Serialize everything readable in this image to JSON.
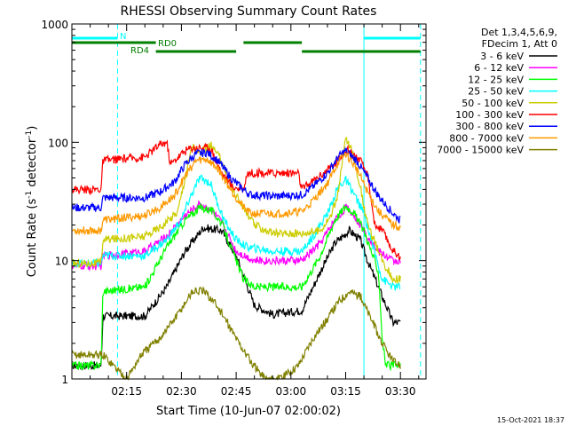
{
  "chart_data": {
    "type": "line",
    "title": "RHESSI Observing Summary Count Rates",
    "xlabel": "Start Time (10-Jun-07 02:00:02)",
    "ylabel_prefix": "Count Rate (s",
    "ylabel_sup1": "-1",
    "ylabel_mid": " detector",
    "ylabel_sup2": "-1",
    "ylabel_suffix": ")",
    "y_scale": "log",
    "ylim": [
      1,
      1000
    ],
    "xlim_minutes": [
      0,
      97
    ],
    "x_ticks": [
      {
        "minutes": 15,
        "label": "02:15"
      },
      {
        "minutes": 30,
        "label": "02:30"
      },
      {
        "minutes": 45,
        "label": "02:45"
      },
      {
        "minutes": 60,
        "label": "03:00"
      },
      {
        "minutes": 75,
        "label": "03:15"
      },
      {
        "minutes": 90,
        "label": "03:30"
      }
    ],
    "y_ticks": [
      {
        "value": 1,
        "label": "1"
      },
      {
        "value": 10,
        "label": "10"
      },
      {
        "value": 100,
        "label": "100"
      },
      {
        "value": 1000,
        "label": "1000"
      }
    ],
    "legend_header": [
      "Det 1,3,4,5,6,9,",
      "FDecim 1, Att 0"
    ],
    "legend_placement": "right",
    "footer": "15-Oct-2021 18:37",
    "series": [
      {
        "name": "3 - 6 keV",
        "color": "#000000",
        "x": [
          0,
          8,
          8.5,
          20,
          26,
          31,
          36,
          41,
          45,
          50,
          55,
          63,
          68,
          72,
          76,
          79,
          81,
          85,
          88,
          90
        ],
        "y": [
          1.3,
          1.3,
          3.4,
          3.4,
          6,
          12,
          19,
          18,
          11,
          4.2,
          3.5,
          3.8,
          8,
          14,
          18,
          15,
          10,
          5,
          3,
          3
        ]
      },
      {
        "name": "6 - 12 keV",
        "color": "#ff00ff",
        "x": [
          0,
          8,
          8.5,
          20,
          26,
          31,
          35,
          38,
          41,
          45,
          50,
          55,
          63,
          68,
          72,
          75,
          77,
          80,
          84,
          88,
          90
        ],
        "y": [
          9,
          9,
          11,
          12,
          16,
          24,
          30,
          27,
          21,
          12,
          10,
          10,
          10,
          14,
          22,
          28,
          25,
          18,
          12,
          10,
          10
        ]
      },
      {
        "name": "12 - 25 keV",
        "color": "#00ff00",
        "x": [
          0,
          8,
          8.5,
          20,
          26,
          31,
          35,
          38,
          41,
          45,
          47,
          50,
          55,
          63,
          68,
          72,
          75,
          77,
          80,
          84,
          85,
          86,
          88,
          90
        ],
        "y": [
          1.3,
          1.3,
          5.5,
          6,
          13,
          22,
          28,
          27,
          21,
          10,
          7,
          6,
          6,
          6,
          11,
          22,
          29,
          26,
          18,
          8,
          2.2,
          1.3,
          1.3,
          1.3
        ]
      },
      {
        "name": "25 - 50 keV",
        "color": "#00ffff",
        "x": [
          0,
          8,
          8.5,
          20,
          26,
          30,
          32,
          35,
          38,
          40,
          42,
          45,
          48,
          55,
          63,
          66,
          70,
          73,
          75,
          77,
          80,
          82,
          85,
          88,
          90
        ],
        "y": [
          9.5,
          9.5,
          11,
          11,
          15,
          22,
          32,
          50,
          45,
          30,
          21,
          15,
          13,
          12,
          12,
          16,
          25,
          42,
          48,
          38,
          25,
          15,
          7,
          6,
          6
        ]
      },
      {
        "name": "50 - 100 keV",
        "color": "#cccc00",
        "x": [
          0,
          8,
          8.5,
          20,
          25,
          29,
          31,
          33,
          35,
          38,
          41,
          44,
          47,
          50,
          55,
          63,
          68,
          71,
          73,
          75,
          77,
          79,
          81,
          85,
          88,
          90
        ],
        "y": [
          9.5,
          9.5,
          15,
          16,
          20,
          26,
          50,
          95,
          80,
          95,
          70,
          40,
          28,
          20,
          17,
          17,
          18,
          24,
          38,
          110,
          80,
          42,
          20,
          10,
          7,
          7
        ]
      },
      {
        "name": "100 - 300 keV",
        "color": "#ff0000",
        "x": [
          0,
          8,
          8.5,
          20,
          24,
          26,
          27,
          31,
          33,
          35,
          38,
          41,
          44,
          47,
          48,
          62,
          63,
          72,
          75,
          77,
          79,
          81,
          83,
          85,
          88,
          90
        ],
        "y": [
          40,
          40,
          70,
          75,
          95,
          100,
          65,
          85,
          90,
          90,
          90,
          55,
          42,
          40,
          55,
          55,
          40,
          65,
          88,
          80,
          70,
          52,
          20,
          18,
          12,
          11
        ]
      },
      {
        "name": "300 - 800 keV",
        "color": "#0000ff",
        "x": [
          0,
          8,
          8.5,
          20,
          24,
          28,
          31,
          34,
          37,
          40,
          44,
          47,
          49,
          56,
          63,
          66,
          70,
          73,
          75,
          78,
          81,
          84,
          88,
          90
        ],
        "y": [
          28,
          28,
          34,
          34,
          38,
          46,
          65,
          80,
          82,
          70,
          48,
          40,
          36,
          35,
          36,
          42,
          55,
          75,
          85,
          70,
          50,
          35,
          25,
          22
        ]
      },
      {
        "name": "800 - 7000 keV",
        "color": "#ff9900",
        "x": [
          0,
          8,
          8.5,
          20,
          24,
          28,
          31,
          34,
          37,
          40,
          44,
          47,
          49,
          56,
          63,
          66,
          70,
          73,
          75,
          78,
          81,
          84,
          88,
          90
        ],
        "y": [
          18,
          18,
          22,
          24,
          28,
          35,
          52,
          70,
          72,
          60,
          38,
          28,
          25,
          25,
          26,
          32,
          45,
          68,
          80,
          60,
          38,
          26,
          20,
          19
        ]
      },
      {
        "name": "7000 - 15000 keV",
        "color": "#808000",
        "x": [
          0,
          8,
          8.5,
          15,
          19,
          24,
          29,
          33,
          36,
          39,
          42,
          45,
          49,
          53,
          57,
          62,
          66,
          70,
          73,
          76,
          79,
          82,
          85,
          88,
          90
        ],
        "y": [
          1.6,
          1.6,
          1.6,
          1,
          1.6,
          2.2,
          3.5,
          5.5,
          5.5,
          4.5,
          3.2,
          2.2,
          1.4,
          1,
          1,
          1.3,
          2.2,
          3.2,
          4.5,
          5.5,
          5,
          3.2,
          2,
          1.4,
          1.3
        ]
      }
    ],
    "state_bars": [
      {
        "label": "N",
        "color": "#00ffff",
        "segments": [
          [
            0,
            12.5
          ],
          [
            80,
            95.5
          ]
        ]
      },
      {
        "label": "RD0",
        "color": "#008000",
        "segments": [
          [
            0,
            23
          ],
          [
            47,
            63
          ]
        ]
      },
      {
        "label": "RD4",
        "color": "#008000",
        "segments": [
          [
            23,
            45
          ],
          [
            63,
            95.5
          ]
        ]
      }
    ],
    "vlines": [
      {
        "minutes": 12.5,
        "style": "dashed",
        "color": "#00ffff"
      },
      {
        "minutes": 80,
        "style": "solid",
        "color": "#00ffff"
      },
      {
        "minutes": 95.5,
        "style": "dashed",
        "color": "#00ffff"
      }
    ]
  }
}
